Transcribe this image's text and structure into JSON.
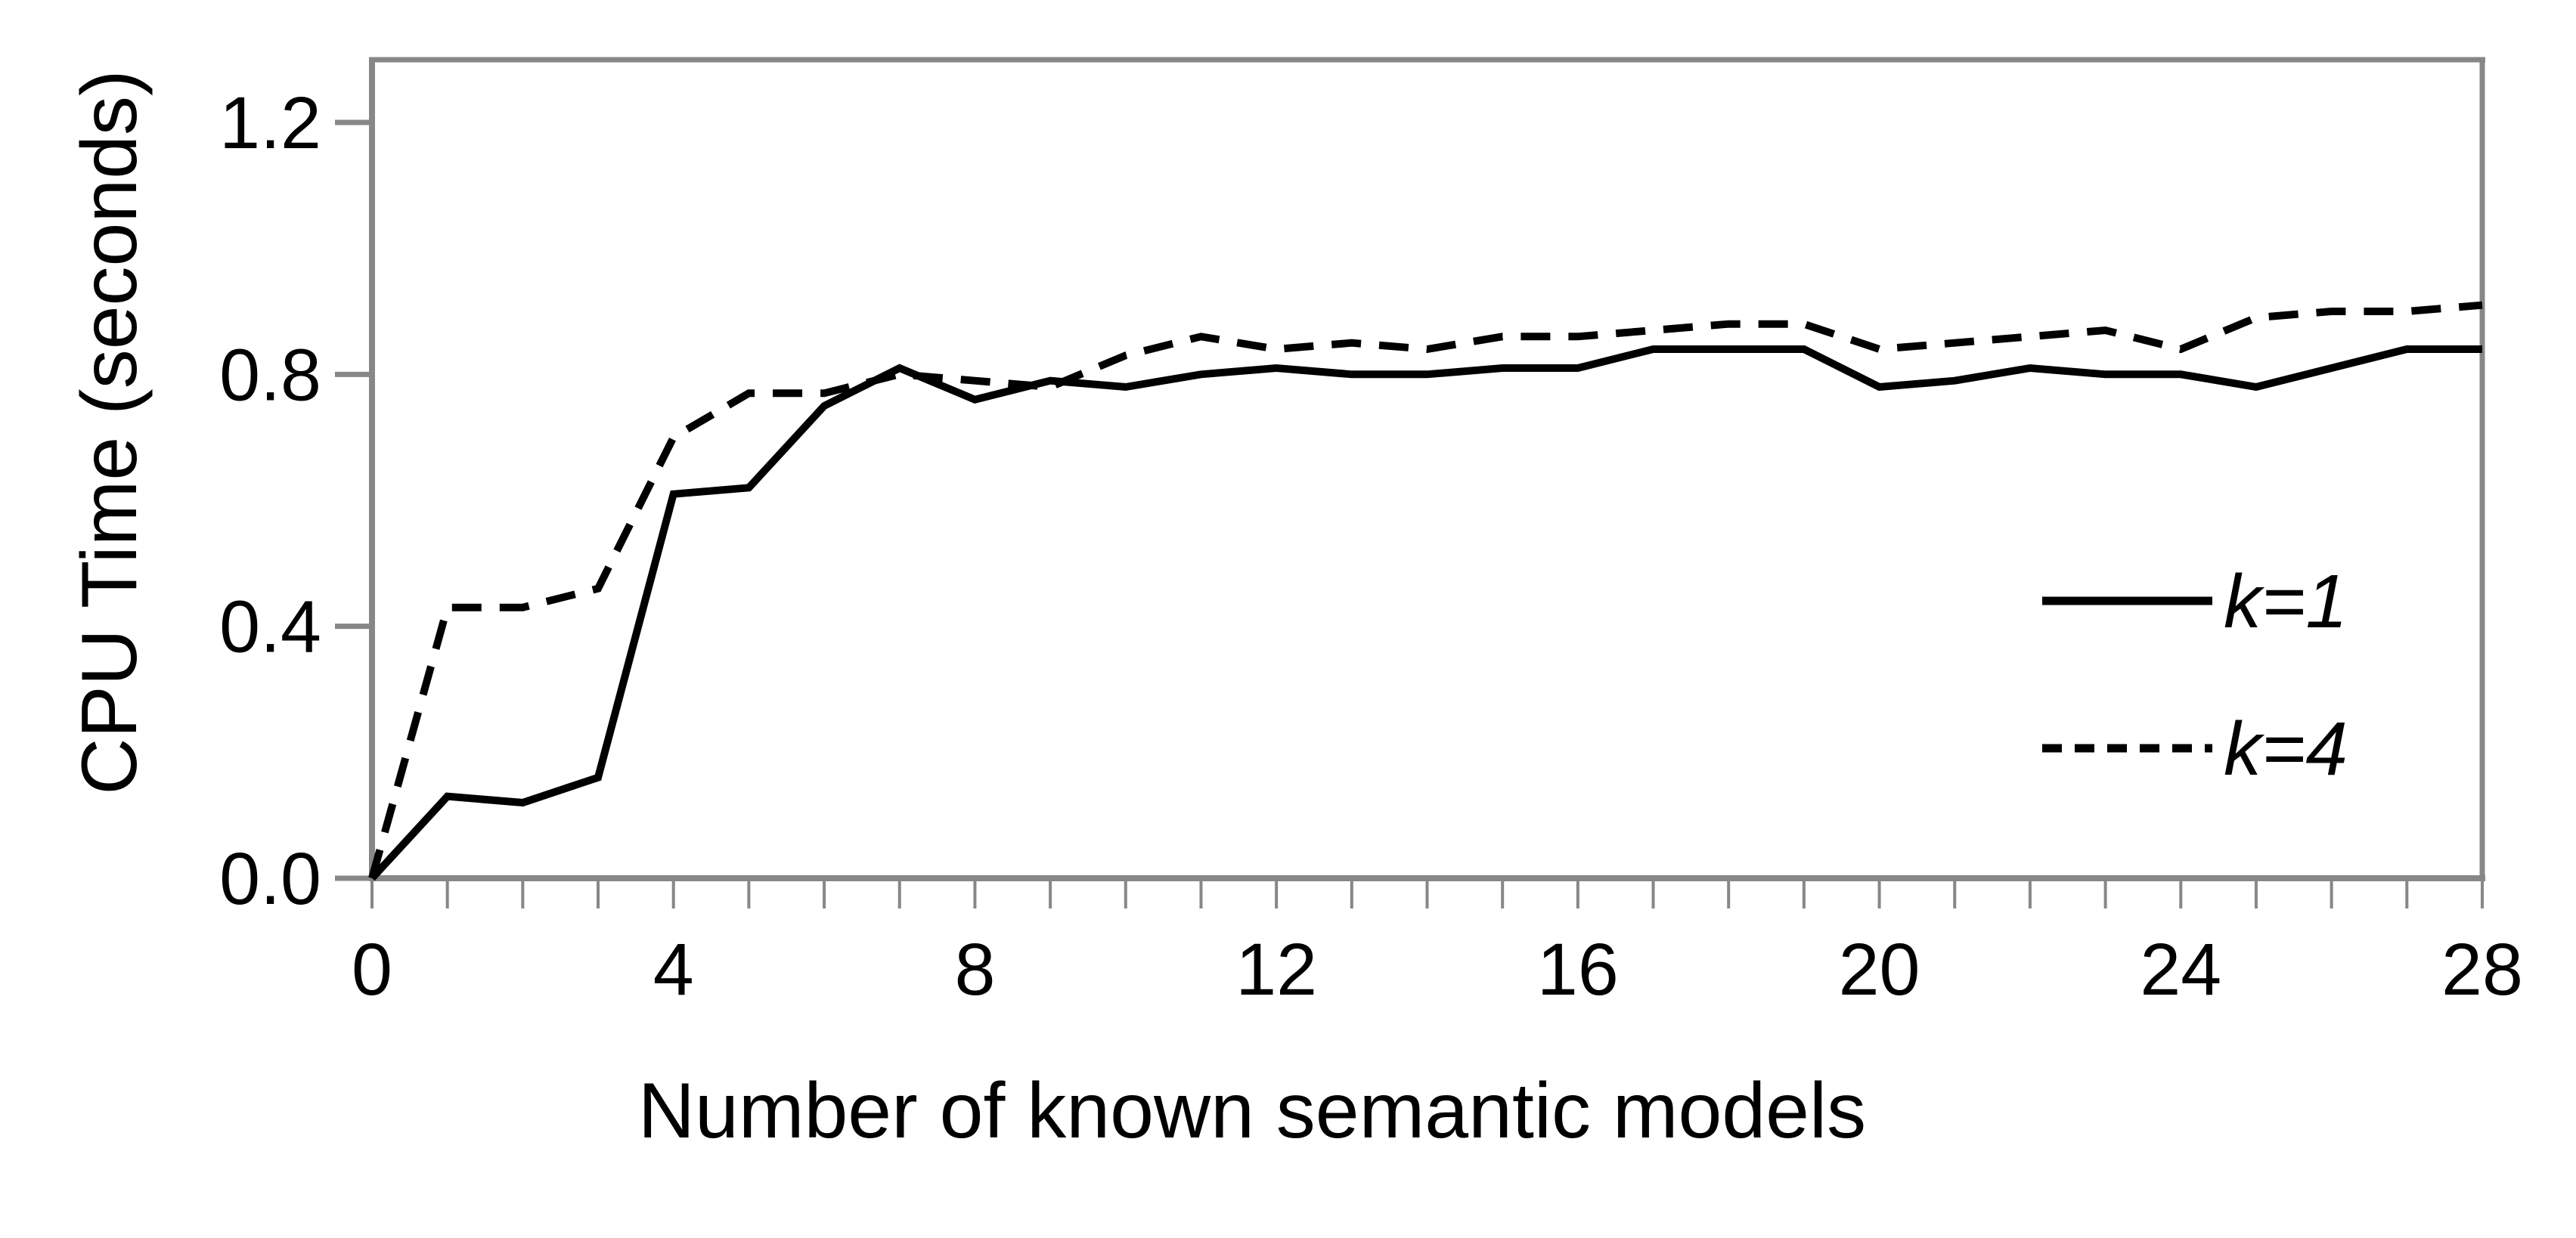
{
  "chart_data": {
    "type": "line",
    "xlabel": "Number of known semantic models",
    "ylabel": "CPU Time (seconds)",
    "x": [
      0,
      1,
      2,
      3,
      4,
      5,
      6,
      7,
      8,
      9,
      10,
      11,
      12,
      13,
      14,
      15,
      16,
      17,
      18,
      19,
      20,
      21,
      22,
      23,
      24,
      25,
      26,
      27,
      28
    ],
    "series": [
      {
        "name": "k=1",
        "style": "solid",
        "values": [
          0.0,
          0.13,
          0.12,
          0.16,
          0.61,
          0.62,
          0.75,
          0.81,
          0.76,
          0.79,
          0.78,
          0.8,
          0.81,
          0.8,
          0.8,
          0.81,
          0.81,
          0.84,
          0.84,
          0.84,
          0.78,
          0.79,
          0.81,
          0.8,
          0.8,
          0.78,
          0.81,
          0.84,
          0.84
        ]
      },
      {
        "name": "k=4",
        "style": "dashed",
        "values": [
          0.0,
          0.43,
          0.43,
          0.46,
          0.7,
          0.77,
          0.77,
          0.8,
          0.79,
          0.78,
          0.83,
          0.86,
          0.84,
          0.85,
          0.84,
          0.86,
          0.86,
          0.87,
          0.88,
          0.88,
          0.84,
          0.85,
          0.86,
          0.87,
          0.84,
          0.89,
          0.9,
          0.9,
          0.91
        ]
      }
    ],
    "xlim": [
      0,
      28
    ],
    "ylim": [
      0,
      1.3
    ],
    "xticks_minor_every": 1,
    "xtick_labels": [
      "0",
      "4",
      "8",
      "12",
      "16",
      "20",
      "24",
      "28"
    ],
    "xtick_label_values": [
      0,
      4,
      8,
      12,
      16,
      20,
      24,
      28
    ],
    "ytick_labels": [
      "0.0",
      "0.4",
      "0.8",
      "1.2"
    ],
    "ytick_values": [
      0.0,
      0.4,
      0.8,
      1.2
    ],
    "grid": false,
    "legend_position": "inside-right",
    "line_color": "#000000",
    "axis_color": "#878787",
    "background": "#ffffff"
  }
}
